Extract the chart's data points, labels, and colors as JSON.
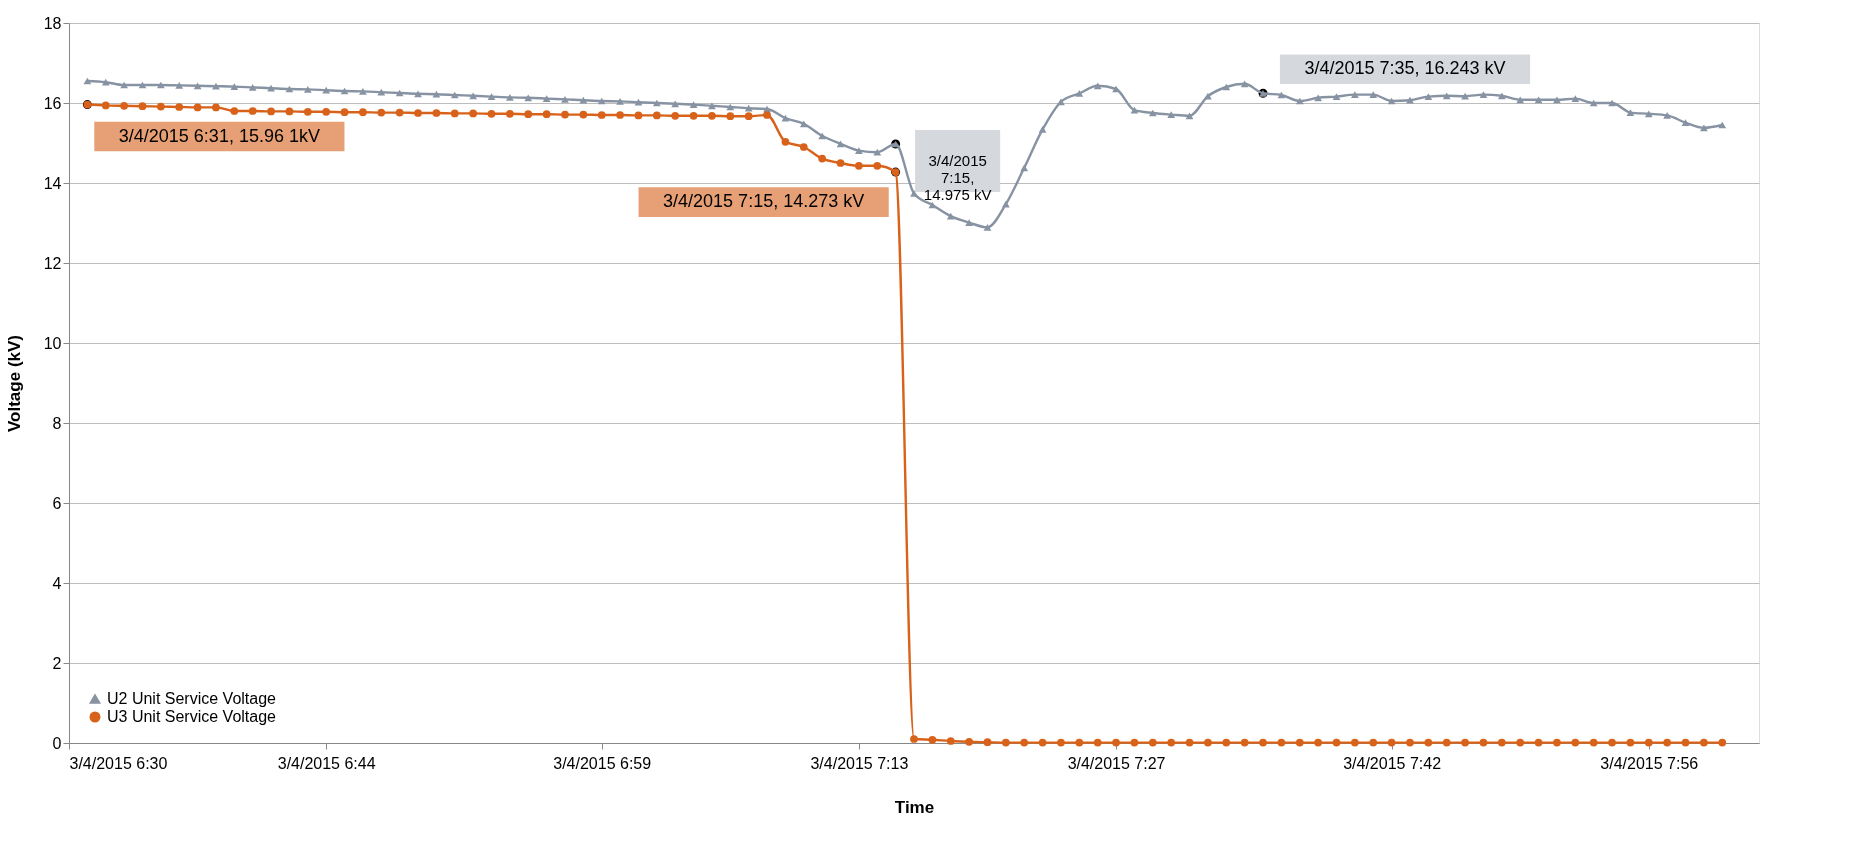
{
  "chart_data": {
    "type": "line",
    "xlabel": "Time",
    "ylabel": "Voltage (kV)",
    "x": [
      "2015-03-04T06:31",
      "2015-03-04T06:32",
      "2015-03-04T06:33",
      "2015-03-04T06:34",
      "2015-03-04T06:35",
      "2015-03-04T06:36",
      "2015-03-04T06:37",
      "2015-03-04T06:38",
      "2015-03-04T06:39",
      "2015-03-04T06:40",
      "2015-03-04T06:41",
      "2015-03-04T06:42",
      "2015-03-04T06:43",
      "2015-03-04T06:44",
      "2015-03-04T06:45",
      "2015-03-04T06:46",
      "2015-03-04T06:47",
      "2015-03-04T06:48",
      "2015-03-04T06:49",
      "2015-03-04T06:50",
      "2015-03-04T06:51",
      "2015-03-04T06:52",
      "2015-03-04T06:53",
      "2015-03-04T06:54",
      "2015-03-04T06:55",
      "2015-03-04T06:56",
      "2015-03-04T06:57",
      "2015-03-04T06:58",
      "2015-03-04T06:59",
      "2015-03-04T07:00",
      "2015-03-04T07:01",
      "2015-03-04T07:02",
      "2015-03-04T07:03",
      "2015-03-04T07:04",
      "2015-03-04T07:05",
      "2015-03-04T07:06",
      "2015-03-04T07:07",
      "2015-03-04T07:08",
      "2015-03-04T07:09",
      "2015-03-04T07:10",
      "2015-03-04T07:11",
      "2015-03-04T07:12",
      "2015-03-04T07:13",
      "2015-03-04T07:14",
      "2015-03-04T07:15",
      "2015-03-04T07:16",
      "2015-03-04T07:17",
      "2015-03-04T07:18",
      "2015-03-04T07:19",
      "2015-03-04T07:20",
      "2015-03-04T07:21",
      "2015-03-04T07:22",
      "2015-03-04T07:23",
      "2015-03-04T07:24",
      "2015-03-04T07:25",
      "2015-03-04T07:26",
      "2015-03-04T07:27",
      "2015-03-04T07:28",
      "2015-03-04T07:29",
      "2015-03-04T07:30",
      "2015-03-04T07:31",
      "2015-03-04T07:32",
      "2015-03-04T07:33",
      "2015-03-04T07:34",
      "2015-03-04T07:35",
      "2015-03-04T07:36",
      "2015-03-04T07:37",
      "2015-03-04T07:38",
      "2015-03-04T07:39",
      "2015-03-04T07:40",
      "2015-03-04T07:41",
      "2015-03-04T07:42",
      "2015-03-04T07:43",
      "2015-03-04T07:44",
      "2015-03-04T07:45",
      "2015-03-04T07:46",
      "2015-03-04T07:47",
      "2015-03-04T07:48",
      "2015-03-04T07:49",
      "2015-03-04T07:50",
      "2015-03-04T07:51",
      "2015-03-04T07:52",
      "2015-03-04T07:53",
      "2015-03-04T07:54",
      "2015-03-04T07:55",
      "2015-03-04T07:56",
      "2015-03-04T07:57",
      "2015-03-04T07:58",
      "2015-03-04T07:59",
      "2015-03-04T08:00"
    ],
    "series": [
      {
        "name": "U2 Unit Service Voltage",
        "color": "#8793a3",
        "marker": "triangle",
        "values": [
          16.55,
          16.52,
          16.45,
          16.45,
          16.45,
          16.44,
          16.43,
          16.42,
          16.41,
          16.39,
          16.37,
          16.35,
          16.34,
          16.32,
          16.3,
          16.29,
          16.27,
          16.25,
          16.23,
          16.22,
          16.2,
          16.18,
          16.16,
          16.14,
          16.13,
          16.11,
          16.09,
          16.07,
          16.05,
          16.04,
          16.02,
          16.0,
          15.98,
          15.96,
          15.93,
          15.9,
          15.87,
          15.85,
          15.62,
          15.48,
          15.18,
          14.98,
          14.81,
          14.77,
          14.975,
          13.74,
          13.45,
          13.17,
          13.01,
          12.89,
          13.47,
          14.38,
          15.34,
          16.03,
          16.24,
          16.43,
          16.35,
          15.82,
          15.75,
          15.71,
          15.68,
          16.17,
          16.4,
          16.48,
          16.243,
          16.2,
          16.05,
          16.13,
          16.16,
          16.21,
          16.21,
          16.05,
          16.07,
          16.16,
          16.18,
          16.17,
          16.21,
          16.18,
          16.08,
          16.08,
          16.08,
          16.11,
          16.0,
          16.0,
          15.76,
          15.73,
          15.69,
          15.51,
          15.38,
          15.45
        ]
      },
      {
        "name": "U3 Unit Service Voltage",
        "color": "#d8621a",
        "marker": "circle",
        "values": [
          15.961,
          15.94,
          15.93,
          15.92,
          15.91,
          15.9,
          15.89,
          15.89,
          15.8,
          15.8,
          15.79,
          15.79,
          15.78,
          15.78,
          15.77,
          15.77,
          15.76,
          15.76,
          15.75,
          15.75,
          15.74,
          15.74,
          15.73,
          15.73,
          15.72,
          15.72,
          15.71,
          15.71,
          15.7,
          15.7,
          15.69,
          15.69,
          15.68,
          15.68,
          15.68,
          15.67,
          15.67,
          15.7,
          15.03,
          14.9,
          14.61,
          14.5,
          14.43,
          14.43,
          14.273,
          0.1,
          0.08,
          0.05,
          0.03,
          0.02,
          0.01,
          0.01,
          0.01,
          0.01,
          0.01,
          0.01,
          0.01,
          0.01,
          0.01,
          0.01,
          0.01,
          0.01,
          0.01,
          0.01,
          0.01,
          0.01,
          0.01,
          0.01,
          0.01,
          0.01,
          0.01,
          0.01,
          0.01,
          0.01,
          0.01,
          0.01,
          0.01,
          0.01,
          0.01,
          0.01,
          0.01,
          0.01,
          0.01,
          0.01,
          0.01,
          0.01,
          0.01,
          0.01,
          0.01,
          0.01
        ]
      }
    ],
    "xlim": [
      "2015-03-04T06:30",
      "2015-03-04T08:02"
    ],
    "xticks": [
      {
        "value": "2015-03-04T06:30",
        "label": "3/4/2015 6:30"
      },
      {
        "value": "2015-03-04T06:44",
        "label": "3/4/2015 6:44"
      },
      {
        "value": "2015-03-04T06:59",
        "label": "3/4/2015 6:59"
      },
      {
        "value": "2015-03-04T07:13",
        "label": "3/4/2015 7:13"
      },
      {
        "value": "2015-03-04T07:27",
        "label": "3/4/2015 7:27"
      },
      {
        "value": "2015-03-04T07:42",
        "label": "3/4/2015 7:42"
      },
      {
        "value": "2015-03-04T07:56",
        "label": "3/4/2015 7:56"
      }
    ],
    "ylim": [
      0,
      18
    ],
    "yticks": [
      0,
      2,
      4,
      6,
      8,
      10,
      12,
      14,
      16,
      18
    ],
    "grid": "y",
    "legend": "bottom left",
    "line_style": "solid",
    "annotations": [
      {
        "text": "3/4/2015 7:15, 14.975 kV",
        "x": "2015-03-04T07:15",
        "y": 14.975
      },
      {
        "text": "3/4/2015 7:35, 16.243 kV",
        "x": "2015-03-04T07:35",
        "y": 16.243
      },
      {
        "text": "3/4/2015 6:31, 15.96 1kV",
        "x": "2015-03-04T06:31",
        "y": 15.961
      },
      {
        "text": "3/4/2015 7:15, 14.273 kV",
        "x": "2015-03-04T07:15",
        "y": 14.273
      }
    ]
  }
}
